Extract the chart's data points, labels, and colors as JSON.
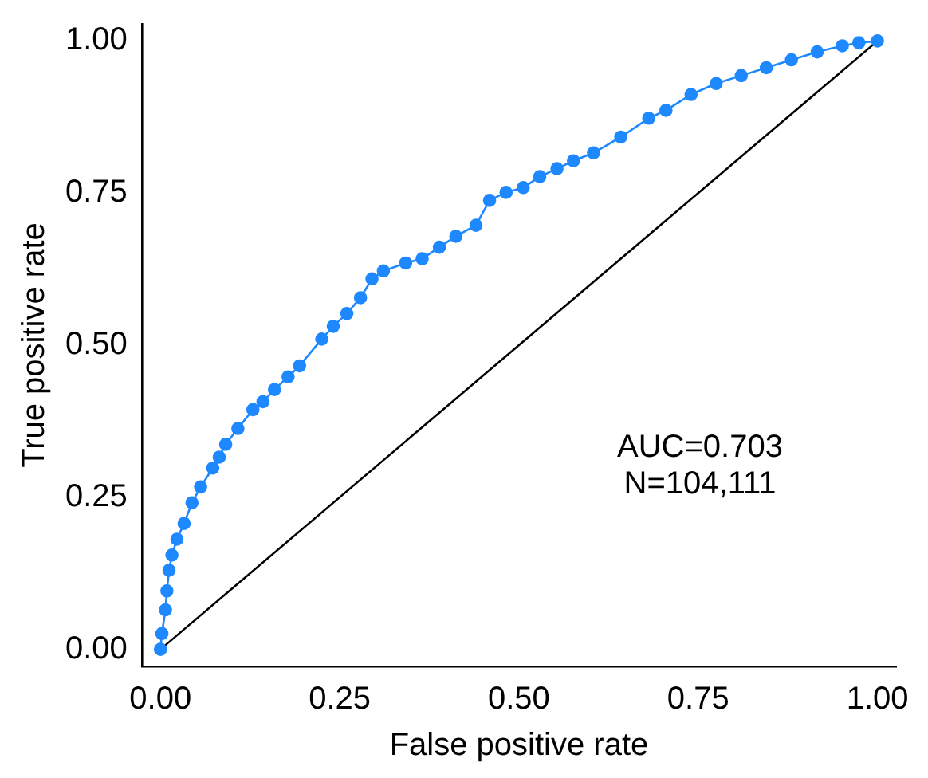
{
  "chart_data": {
    "type": "line",
    "xlabel": "False positive rate",
    "ylabel": "True positive rate",
    "annotations": [
      "AUC=0.703",
      "N=104,111"
    ],
    "xlim": [
      -0.026,
      1.026
    ],
    "ylim": [
      -0.028,
      1.028
    ],
    "xticks": [
      {
        "value": 0,
        "label": "0.00"
      },
      {
        "value": 0.25,
        "label": "0.25"
      },
      {
        "value": 0.5,
        "label": "0.50"
      },
      {
        "value": 0.75,
        "label": "0.75"
      },
      {
        "value": 1,
        "label": "1.00"
      }
    ],
    "yticks": [
      {
        "value": 0,
        "label": "0.00"
      },
      {
        "value": 0.25,
        "label": "0.25"
      },
      {
        "value": 0.5,
        "label": "0.50"
      },
      {
        "value": 0.75,
        "label": "0.75"
      },
      {
        "value": 1,
        "label": "1.00"
      }
    ],
    "grid": false,
    "legend": false,
    "marker": "circle",
    "series": [
      {
        "color": "#1e88ff",
        "x": [
          0,
          0.002,
          0.007,
          0.009,
          0.012,
          0.016,
          0.023,
          0.033,
          0.044,
          0.056,
          0.073,
          0.082,
          0.091,
          0.108,
          0.129,
          0.143,
          0.159,
          0.178,
          0.194,
          0.225,
          0.241,
          0.26,
          0.279,
          0.295,
          0.311,
          0.342,
          0.365,
          0.389,
          0.412,
          0.44,
          0.459,
          0.482,
          0.506,
          0.529,
          0.553,
          0.576,
          0.604,
          0.642,
          0.681,
          0.705,
          0.74,
          0.775,
          0.81,
          0.845,
          0.88,
          0.916,
          0.951,
          0.974,
          1
        ],
        "values": [
          0,
          0.026,
          0.065,
          0.096,
          0.13,
          0.155,
          0.181,
          0.207,
          0.241,
          0.267,
          0.298,
          0.316,
          0.337,
          0.363,
          0.394,
          0.407,
          0.427,
          0.448,
          0.466,
          0.51,
          0.531,
          0.552,
          0.578,
          0.609,
          0.622,
          0.635,
          0.642,
          0.661,
          0.679,
          0.697,
          0.738,
          0.751,
          0.759,
          0.777,
          0.79,
          0.803,
          0.816,
          0.842,
          0.873,
          0.886,
          0.912,
          0.93,
          0.943,
          0.956,
          0.969,
          0.982,
          0.992,
          0.997,
          1
        ]
      },
      {
        "color": "#000000",
        "marker": "none",
        "x": [
          0,
          1
        ],
        "values": [
          0,
          1
        ]
      }
    ]
  }
}
